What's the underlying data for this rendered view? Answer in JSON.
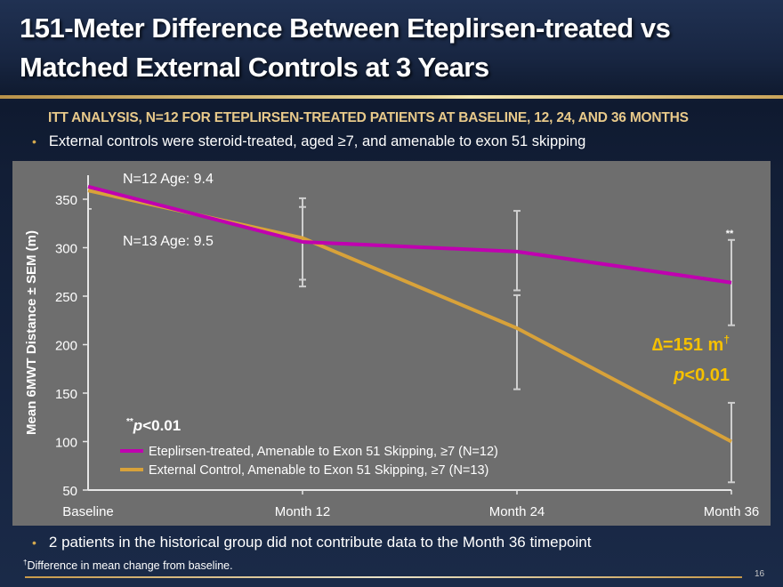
{
  "slide": {
    "title": "151-Meter Difference Between Eteplirsen-treated vs Matched External Controls at 3 Years",
    "title_line1": "151-Meter Difference Between Eteplirsen-treated vs",
    "title_line2": "Matched External Controls at 3 Years",
    "subtitle": "ITT ANALYSIS, N=12 FOR ETEPLIRSEN-TREATED PATIENTS AT BASELINE, 12, 24, AND 36 MONTHS",
    "bullet_top": "External controls were steroid-treated, aged ≥7, and amenable to exon 51 skipping",
    "bullet_bottom": "2 patients in the historical group did not contribute data to the Month 36 timepoint",
    "footnote_mark": "†",
    "footnote": "Difference in mean change from baseline.",
    "page_number": "16",
    "bullet_icon": "•"
  },
  "colors": {
    "eteplirsen": "#c000b0",
    "control": "#d8a23a",
    "annotation": "#f5c000",
    "panel": "#6e6e6e",
    "gold": "#e8c98a"
  },
  "chart_data": {
    "type": "line",
    "title": "",
    "xlabel": "",
    "ylabel": "Mean 6MWT Distance ± SEM (m)",
    "categories": [
      "Baseline",
      "Month 12",
      "Month 24",
      "Month 36"
    ],
    "ylim": [
      50,
      370
    ],
    "yticks": [
      50,
      100,
      150,
      200,
      250,
      300,
      350
    ],
    "grid": false,
    "legend_position": "bottom-left",
    "series": [
      {
        "name": "Eteplirsen-treated, Amenable to Exon 51 Skipping, ≥7 (N=12)",
        "color_key": "eteplirsen",
        "values": [
          363,
          306,
          296,
          264
        ],
        "sem_upper": [
          null,
          351,
          338,
          308
        ],
        "sem_lower": [
          null,
          260,
          256,
          220
        ]
      },
      {
        "name": "External Control, Amenable to Exon 51 Skipping, ≥7 (N=13)",
        "color_key": "control",
        "values": [
          359,
          310,
          217,
          100
        ],
        "sem_upper": [
          null,
          342,
          251,
          140
        ],
        "sem_lower": [
          null,
          267,
          154,
          58
        ]
      }
    ],
    "annotations": {
      "group1_label": "N=12 Age: 9.4",
      "group2_label": "N=13 Age: 9.5",
      "sig_marker": "**",
      "sig_note_prefix": "**",
      "sig_note": "p<0.01",
      "delta_label": "∆=151 m",
      "delta_mark": "†",
      "delta_p": "p<0.01"
    }
  }
}
